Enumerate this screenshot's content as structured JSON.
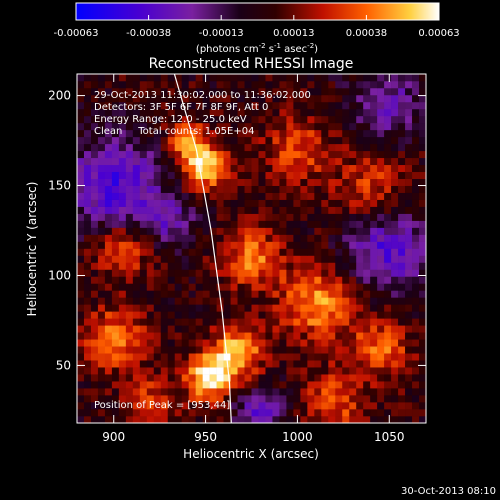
{
  "chart_data": {
    "type": "heatmap",
    "title": "Reconstructed RHESSI Image",
    "xlabel": "Heliocentric X (arcsec)",
    "ylabel": "Heliocentric Y (arcsec)",
    "xlim": [
      880,
      1070
    ],
    "ylim": [
      18,
      212
    ],
    "x_ticks": [
      900,
      950,
      1000,
      1050
    ],
    "y_ticks": [
      50,
      100,
      150,
      200
    ],
    "colorbar": {
      "range": [
        -0.00063,
        0.00063
      ],
      "ticks": [
        "-0.00063",
        "-0.00038",
        "-0.00013",
        "0.00013",
        "0.00038",
        "0.00063"
      ],
      "unit_label": "(photons cm",
      "unit_exp1": "-2",
      "unit_mid": " s",
      "unit_exp2": "-1",
      "unit_end": " asec",
      "unit_exp3": "-2",
      "unit_close": ")"
    },
    "annotations": [
      "29-Oct-2013 11:30:02.000 to 11:36:02.000",
      "Detectors: 3F 5F 6F 7F 8F 9F, Att 0",
      "Energy Range: 12.0 - 25.0 keV",
      "Clean     Total counts: 1.05E+04"
    ],
    "peak_label": "Position of Peak = [953,44]",
    "peak": {
      "x": 953,
      "y": 44
    },
    "limb_curve": {
      "x": [
        933,
        945,
        953,
        959,
        963,
        964
      ],
      "y": [
        212,
        170,
        125,
        80,
        40,
        18
      ]
    },
    "hot_spots": [
      {
        "x": 952,
        "y": 44,
        "amp": 1.0,
        "sigma": 9
      },
      {
        "x": 968,
        "y": 58,
        "amp": 0.8,
        "sigma": 10
      },
      {
        "x": 950,
        "y": 160,
        "amp": 0.85,
        "sigma": 9
      },
      {
        "x": 940,
        "y": 175,
        "amp": 0.6,
        "sigma": 8
      },
      {
        "x": 900,
        "y": 65,
        "amp": 0.65,
        "sigma": 12
      },
      {
        "x": 905,
        "y": 115,
        "amp": 0.55,
        "sigma": 11
      },
      {
        "x": 975,
        "y": 110,
        "amp": 0.6,
        "sigma": 12
      },
      {
        "x": 1010,
        "y": 85,
        "amp": 0.7,
        "sigma": 14
      },
      {
        "x": 1045,
        "y": 60,
        "amp": 0.55,
        "sigma": 12
      },
      {
        "x": 1000,
        "y": 170,
        "amp": 0.5,
        "sigma": 13
      },
      {
        "x": 1040,
        "y": 150,
        "amp": 0.45,
        "sigma": 14
      },
      {
        "x": 920,
        "y": 30,
        "amp": 0.45,
        "sigma": 10
      },
      {
        "x": 1020,
        "y": 30,
        "amp": 0.5,
        "sigma": 12
      }
    ],
    "cold_spots": [
      {
        "x": 900,
        "y": 150,
        "amp": 0.8,
        "sigma": 18
      },
      {
        "x": 1050,
        "y": 115,
        "amp": 0.7,
        "sigma": 16
      },
      {
        "x": 980,
        "y": 25,
        "amp": 0.7,
        "sigma": 9
      },
      {
        "x": 1050,
        "y": 195,
        "amp": 0.5,
        "sigma": 14
      },
      {
        "x": 930,
        "y": 130,
        "amp": 0.45,
        "sigma": 10
      }
    ]
  },
  "footer": {
    "timestamp": "30-Oct-2013 08:10"
  }
}
